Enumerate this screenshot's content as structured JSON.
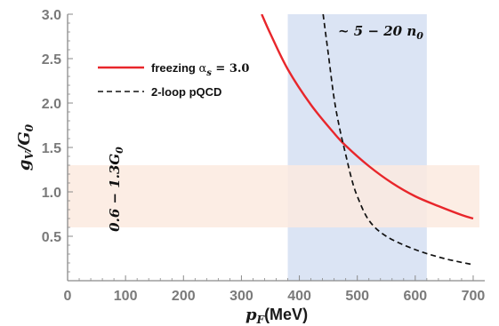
{
  "chart_data": {
    "type": "line",
    "xlabel": "p_F(MeV)",
    "ylabel": "g_V/G_0",
    "xlim": [
      0,
      720
    ],
    "ylim": [
      0,
      3.0
    ],
    "x_ticks": [
      "0",
      "100",
      "200",
      "300",
      "400",
      "500",
      "600",
      "700"
    ],
    "y_ticks": [
      "0.5",
      "1.0",
      "1.5",
      "2.0",
      "2.5",
      "3.0"
    ],
    "x_tick_values": [
      0,
      100,
      200,
      300,
      400,
      500,
      600,
      700
    ],
    "y_tick_values": [
      0.5,
      1.0,
      1.5,
      2.0,
      2.5,
      3.0
    ],
    "series": [
      {
        "name": "freezing αs = 3.0",
        "color": "#e8262b",
        "style": "solid",
        "x": [
          335,
          350,
          380,
          420,
          460,
          480,
          520,
          560,
          600,
          640,
          680,
          700
        ],
        "y": [
          3.0,
          2.78,
          2.38,
          1.98,
          1.66,
          1.52,
          1.29,
          1.1,
          0.95,
          0.84,
          0.74,
          0.7
        ]
      },
      {
        "name": "2-loop pQCD",
        "color": "#111111",
        "style": "dashed",
        "x": [
          441,
          450,
          460,
          470,
          480,
          490,
          500,
          520,
          550,
          600,
          650,
          700
        ],
        "y": [
          3.0,
          2.55,
          2.05,
          1.7,
          1.42,
          1.15,
          0.95,
          0.68,
          0.5,
          0.35,
          0.25,
          0.18
        ]
      }
    ],
    "bands": [
      {
        "orientation": "vertical",
        "from": 380,
        "to": 620,
        "color": "#dbe4f4",
        "label": "~ 5 − 20 n_0"
      },
      {
        "orientation": "horizontal",
        "from": 0.6,
        "to": 1.3,
        "color": "#fbeadf",
        "label": "0.6 − 1.3G_0"
      }
    ],
    "legend_placement": "upper-left",
    "grid": false
  }
}
